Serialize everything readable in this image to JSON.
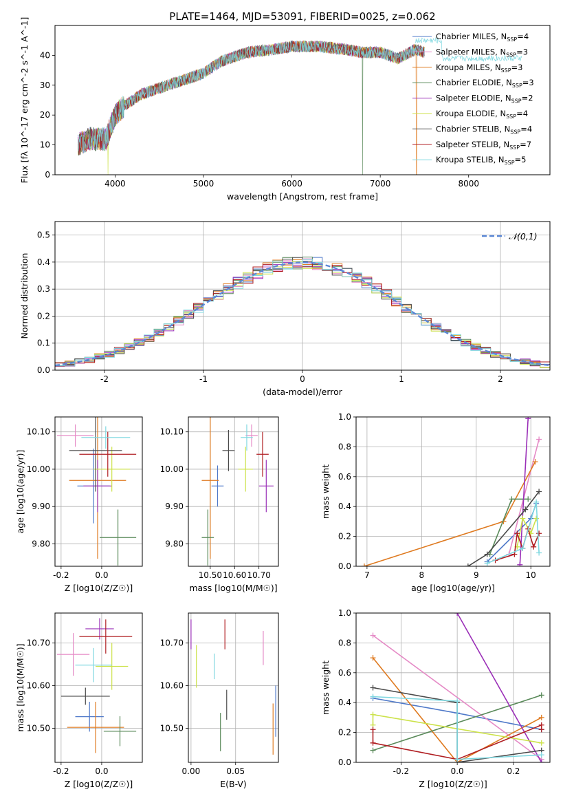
{
  "figure_title": "PLATE=1464, MJD=53091, FIBERID=0025, z=0.062",
  "models": [
    {
      "name": "Chabrier MILES",
      "n": "4",
      "color": "#4f79c9"
    },
    {
      "name": "Salpeter MILES",
      "n": "3",
      "color": "#e58ac6"
    },
    {
      "name": "Kroupa MILES",
      "n": "3",
      "color": "#df7a20"
    },
    {
      "name": "Chabrier ELODIE",
      "n": "3",
      "color": "#5a8a5a"
    },
    {
      "name": "Salpeter ELODIE",
      "n": "2",
      "color": "#9b30b8"
    },
    {
      "name": "Kroupa ELODIE",
      "n": "4",
      "color": "#cce24a"
    },
    {
      "name": "Chabrier STELIB",
      "n": "4",
      "color": "#4a4a4a"
    },
    {
      "name": "Salpeter STELIB",
      "n": "7",
      "color": "#b01e22"
    },
    {
      "name": "Kroupa STELIB",
      "n": "5",
      "color": "#7fd8e0"
    }
  ],
  "chart_data": [
    {
      "id": "spectrum",
      "type": "line",
      "xlabel": "wavelength [Angstrom, rest frame]",
      "ylabel": "Flux [fλ 10^-17 erg cm^-2 s^-1 A^-1]",
      "xlim": [
        3320,
        8920
      ],
      "ylim": [
        0,
        50
      ],
      "xticks": [
        4000,
        5000,
        6000,
        7000,
        8000
      ],
      "yticks": [
        0,
        10,
        20,
        30,
        40
      ],
      "grid": false,
      "legend": "top-right",
      "continuum_x": [
        3580,
        3700,
        3900,
        4000,
        4100,
        4300,
        4500,
        4800,
        5000,
        5200,
        5500,
        5800,
        6000,
        6300,
        6600,
        6800,
        7000,
        7200,
        7400,
        7500
      ],
      "continuum_y": [
        10,
        12,
        12,
        20,
        23,
        27,
        29,
        32,
        34,
        38,
        41,
        42,
        43,
        43,
        42,
        41,
        41,
        39,
        42,
        41
      ]
    },
    {
      "id": "residuals",
      "type": "line",
      "xlabel": "(data-model)/error",
      "ylabel": "Normed distribution",
      "xlim": [
        -2.5,
        2.5
      ],
      "ylim": [
        0,
        0.55
      ],
      "xticks": [
        -2,
        -1,
        0,
        1,
        2
      ],
      "yticks": [
        0.0,
        0.1,
        0.2,
        0.3,
        0.4,
        0.5
      ],
      "grid": true,
      "legend": "top-right",
      "reference": {
        "name": "𝒩(0,1)",
        "mean": 0,
        "sigma": 1
      }
    },
    {
      "id": "age_vs_Z",
      "type": "scatter",
      "xlabel": "Z [log10(Z/Z☉)]",
      "ylabel": "age  [log10(age/yr)]",
      "xlim": [
        -0.23,
        0.2
      ],
      "ylim": [
        9.74,
        10.14
      ],
      "xticks": [
        -0.2,
        0.0
      ],
      "yticks": [
        9.8,
        9.9,
        10.0,
        10.1
      ],
      "grid": true,
      "points": [
        {
          "x": -0.04,
          "y": 9.955,
          "xerr": 0.08,
          "yerr": 0.1
        },
        {
          "x": -0.13,
          "y": 10.09,
          "xerr": 0.09,
          "yerr": 0.03
        },
        {
          "x": -0.02,
          "y": 9.97,
          "xerr": 0.14,
          "yerr": 0.21
        },
        {
          "x": 0.08,
          "y": 9.817,
          "xerr": 0.09,
          "yerr": 0.075
        },
        {
          "x": -0.02,
          "y": 9.955,
          "xerr": 0.07,
          "yerr": 0.07
        },
        {
          "x": 0.05,
          "y": 10.0,
          "xerr": 0.09,
          "yerr": 0.06
        },
        {
          "x": -0.03,
          "y": 10.05,
          "xerr": 0.13,
          "yerr": 0.11
        },
        {
          "x": 0.03,
          "y": 10.04,
          "xerr": 0.14,
          "yerr": 0.06
        },
        {
          "x": 0.02,
          "y": 10.085,
          "xerr": 0.12,
          "yerr": 0.03
        }
      ]
    },
    {
      "id": "age_vs_mass",
      "type": "scatter",
      "xlabel": "mass [log10(M/M☉)]",
      "ylabel": "",
      "xlim": [
        10.41,
        10.78
      ],
      "ylim": [
        9.74,
        10.14
      ],
      "xticks": [
        10.5,
        10.6,
        10.7
      ],
      "yticks": [
        9.8,
        9.9,
        10.0,
        10.1
      ],
      "grid": true,
      "points": [
        {
          "x": 10.53,
          "y": 9.955,
          "xerr": 0.025,
          "yerr": 0.055
        },
        {
          "x": 10.67,
          "y": 10.09,
          "xerr": 0.025,
          "yerr": 0.03
        },
        {
          "x": 10.5,
          "y": 9.97,
          "xerr": 0.035,
          "yerr": 0.21
        },
        {
          "x": 10.49,
          "y": 9.817,
          "xerr": 0.025,
          "yerr": 0.075
        },
        {
          "x": 10.73,
          "y": 9.955,
          "xerr": 0.03,
          "yerr": 0.07
        },
        {
          "x": 10.645,
          "y": 10.0,
          "xerr": 0.03,
          "yerr": 0.06
        },
        {
          "x": 10.575,
          "y": 10.05,
          "xerr": 0.025,
          "yerr": 0.055
        },
        {
          "x": 10.715,
          "y": 10.04,
          "xerr": 0.025,
          "yerr": 0.06
        },
        {
          "x": 10.65,
          "y": 10.085,
          "xerr": 0.025,
          "yerr": 0.035
        }
      ]
    },
    {
      "id": "massweight_vs_age",
      "type": "line",
      "xlabel": "age  [log10(age/yr)]",
      "ylabel": "mass weight",
      "xlim": [
        6.8,
        10.35
      ],
      "ylim": [
        0,
        1
      ],
      "xticks": [
        7,
        8,
        9,
        10
      ],
      "yticks": [
        0.0,
        0.2,
        0.4,
        0.6,
        0.8,
        1.0
      ],
      "grid": true,
      "series": [
        {
          "x": [
            9.2,
            10.0,
            10.1
          ],
          "y": [
            0.03,
            0.32,
            0.42
          ]
        },
        {
          "x": [
            9.6,
            10.15
          ],
          "y": [
            0.08,
            0.85
          ]
        },
        {
          "x": [
            6.95,
            9.5,
            10.08
          ],
          "y": [
            0.0,
            0.3,
            0.7
          ]
        },
        {
          "x": [
            9.25,
            9.65,
            9.95
          ],
          "y": [
            0.08,
            0.45,
            0.45
          ]
        },
        {
          "x": [
            9.8,
            9.95
          ],
          "y": [
            0.01,
            0.99
          ]
        },
        {
          "x": [
            9.75,
            9.85,
            10.0,
            10.1
          ],
          "y": [
            0.13,
            0.32,
            0.22,
            0.32
          ]
        },
        {
          "x": [
            8.85,
            9.2,
            9.9,
            10.15
          ],
          "y": [
            0.0,
            0.08,
            0.38,
            0.5
          ]
        },
        {
          "x": [
            9.35,
            9.7,
            9.75,
            9.85,
            9.95,
            10.05,
            10.15
          ],
          "y": [
            0.04,
            0.08,
            0.22,
            0.12,
            0.25,
            0.13,
            0.22
          ]
        },
        {
          "x": [
            9.2,
            9.85,
            10.1,
            10.15
          ],
          "y": [
            0.02,
            0.12,
            0.43,
            0.09
          ]
        }
      ]
    },
    {
      "id": "mass_vs_Z",
      "type": "scatter",
      "xlabel": "Z [log10(Z/Z☉)]",
      "ylabel": "mass [log10(M/M☉)]",
      "xlim": [
        -0.23,
        0.2
      ],
      "ylim": [
        10.42,
        10.77
      ],
      "xticks": [
        -0.2,
        0.0
      ],
      "yticks": [
        10.5,
        10.6,
        10.7
      ],
      "grid": true,
      "points": [
        {
          "x": -0.06,
          "y": 10.527,
          "xerr": 0.07,
          "yerr": 0.035
        },
        {
          "x": -0.14,
          "y": 10.673,
          "xerr": 0.08,
          "yerr": 0.05
        },
        {
          "x": -0.03,
          "y": 10.502,
          "xerr": 0.14,
          "yerr": 0.06
        },
        {
          "x": 0.09,
          "y": 10.493,
          "xerr": 0.08,
          "yerr": 0.035
        },
        {
          "x": -0.01,
          "y": 10.733,
          "xerr": 0.07,
          "yerr": 0.025
        },
        {
          "x": 0.05,
          "y": 10.645,
          "xerr": 0.08,
          "yerr": 0.055
        },
        {
          "x": -0.08,
          "y": 10.575,
          "xerr": 0.12,
          "yerr": 0.02
        },
        {
          "x": 0.02,
          "y": 10.715,
          "xerr": 0.13,
          "yerr": 0.04
        },
        {
          "x": -0.04,
          "y": 10.648,
          "xerr": 0.09,
          "yerr": 0.04
        }
      ]
    },
    {
      "id": "mass_vs_ebv",
      "type": "scatter",
      "xlabel": "E(B-V)",
      "ylabel": "",
      "xlim": [
        -0.003,
        0.098
      ],
      "ylim": [
        10.42,
        10.77
      ],
      "xticks": [
        0.0,
        0.05
      ],
      "yticks": [
        10.5,
        10.6,
        10.7
      ],
      "grid": true,
      "points": [
        {
          "x": 0.095,
          "y": 10.54,
          "xerr": 0,
          "yerr": 0.06
        },
        {
          "x": 0.081,
          "y": 10.688,
          "xerr": 0,
          "yerr": 0.04
        },
        {
          "x": 0.092,
          "y": 10.498,
          "xerr": 0,
          "yerr": 0.06
        },
        {
          "x": 0.033,
          "y": 10.491,
          "xerr": 0,
          "yerr": 0.045
        },
        {
          "x": 0.0,
          "y": 10.72,
          "xerr": 0,
          "yerr": 0.035
        },
        {
          "x": 0.006,
          "y": 10.645,
          "xerr": 0,
          "yerr": 0.05
        },
        {
          "x": 0.04,
          "y": 10.555,
          "xerr": 0,
          "yerr": 0.035
        },
        {
          "x": 0.038,
          "y": 10.72,
          "xerr": 0,
          "yerr": 0.035
        },
        {
          "x": 0.026,
          "y": 10.645,
          "xerr": 0,
          "yerr": 0.03
        }
      ]
    },
    {
      "id": "massweight_vs_Z",
      "type": "line",
      "xlabel": "Z [log10(Z/Z☉)]",
      "ylabel": "mass weight",
      "xlim": [
        -0.36,
        0.33
      ],
      "ylim": [
        0,
        1
      ],
      "xticks": [
        -0.2,
        0.0,
        0.2
      ],
      "yticks": [
        0.0,
        0.2,
        0.4,
        0.6,
        0.8,
        1.0
      ],
      "grid": true,
      "series": [
        {
          "x": [
            -0.3,
            0.0,
            0.3
          ],
          "y": [
            0.43,
            0.33,
            0.22
          ]
        },
        {
          "x": [
            -0.3,
            0.3
          ],
          "y": [
            0.85,
            0.02
          ]
        },
        {
          "x": [
            -0.3,
            0.0,
            0.3
          ],
          "y": [
            0.7,
            0.0,
            0.3
          ]
        },
        {
          "x": [
            -0.3,
            0.3
          ],
          "y": [
            0.08,
            0.45
          ]
        },
        {
          "x": [
            0.0,
            0.3
          ],
          "y": [
            1.0,
            0.0
          ]
        },
        {
          "x": [
            -0.3,
            -0.3,
            0.3
          ],
          "y": [
            0.25,
            0.32,
            0.13
          ]
        },
        {
          "x": [
            -0.3,
            0.0,
            0.0,
            0.3
          ],
          "y": [
            0.5,
            0.4,
            0.0,
            0.08
          ]
        },
        {
          "x": [
            -0.3,
            -0.3,
            0.0,
            0.3,
            0.3
          ],
          "y": [
            0.22,
            0.13,
            0.02,
            0.25,
            0.22
          ]
        },
        {
          "x": [
            -0.3,
            0.0,
            0.0,
            0.3
          ],
          "y": [
            0.44,
            0.41,
            0.02,
            0.05
          ]
        }
      ]
    }
  ]
}
